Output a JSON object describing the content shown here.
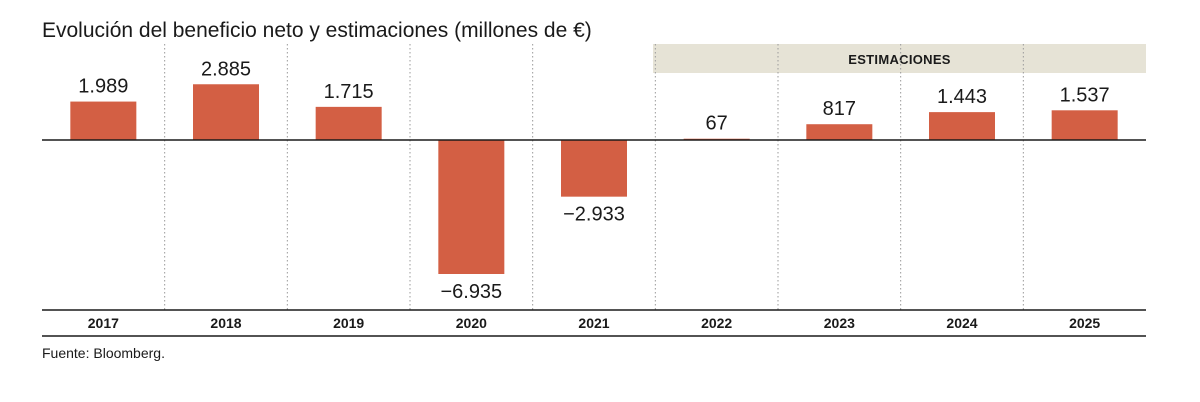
{
  "chart_data": {
    "type": "bar",
    "title": "Evolución del beneficio neto y estimaciones (millones de €)",
    "categories": [
      "2017",
      "2018",
      "2019",
      "2020",
      "2021",
      "2022",
      "2023",
      "2024",
      "2025"
    ],
    "values": [
      1989,
      2885,
      1715,
      -6935,
      -2933,
      67,
      817,
      1443,
      1537
    ],
    "value_labels": [
      "1.989",
      "2.885",
      "1.715",
      "−6.935",
      "−2.933",
      "67",
      "817",
      "1.443",
      "1.537"
    ],
    "estimates_label": "ESTIMACIONES",
    "estimated_categories": [
      "2022",
      "2023",
      "2024",
      "2025"
    ],
    "source": "Fuente: Bloomberg.",
    "grid": "vertical dotted separators",
    "colors": {
      "bar": "#d35f44",
      "estimates_band": "#e6e3d6",
      "axis": "#1a1a1a",
      "separator": "#9a9a9a"
    }
  }
}
